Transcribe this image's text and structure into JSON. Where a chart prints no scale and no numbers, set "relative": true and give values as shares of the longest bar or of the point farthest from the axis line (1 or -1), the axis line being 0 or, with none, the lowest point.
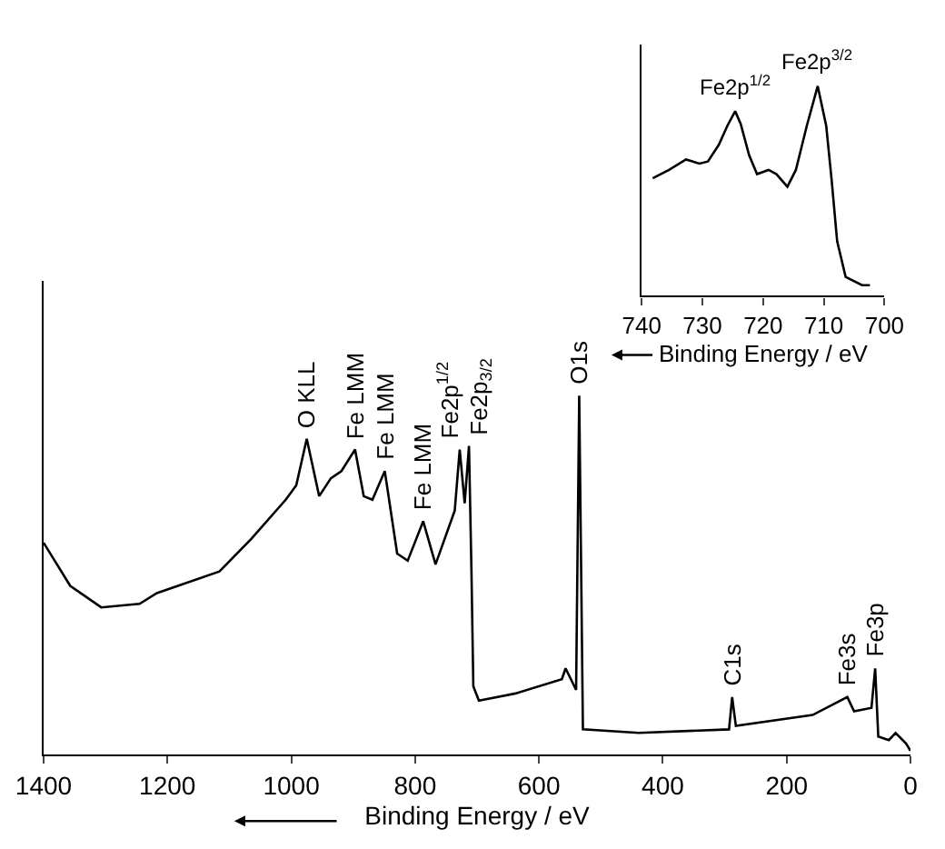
{
  "chart_data": [
    {
      "type": "line",
      "relative": true,
      "xlabel": "Binding Energy / eV",
      "xlim": [
        1400,
        0
      ],
      "xticks": [
        1400,
        1200,
        1000,
        800,
        600,
        400,
        200,
        0
      ],
      "x": [
        1400,
        1357,
        1307,
        1245,
        1217,
        1116,
        1065,
        1009,
        992,
        975,
        955,
        936,
        919,
        897,
        883,
        869,
        849,
        829,
        812,
        787,
        767,
        736,
        728,
        720,
        713,
        709,
        706,
        697,
        638,
        563,
        557,
        540,
        535,
        529,
        439,
        293,
        288,
        282,
        158,
        102,
        91,
        63,
        57,
        52,
        35,
        24,
        7,
        0
      ],
      "series": [
        {
          "color": "#000000",
          "values": [
            0.59,
            0.47,
            0.41,
            0.42,
            0.45,
            0.51,
            0.6,
            0.71,
            0.75,
            0.88,
            0.72,
            0.77,
            0.79,
            0.85,
            0.72,
            0.71,
            0.79,
            0.56,
            0.54,
            0.65,
            0.53,
            0.68,
            0.85,
            0.7,
            0.86,
            0.51,
            0.19,
            0.15,
            0.17,
            0.21,
            0.24,
            0.18,
            1.0,
            0.07,
            0.06,
            0.07,
            0.16,
            0.08,
            0.11,
            0.16,
            0.12,
            0.13,
            0.24,
            0.05,
            0.04,
            0.06,
            0.03,
            0.01
          ]
        }
      ],
      "annotations": [
        {
          "text": "O KLL",
          "x": 975,
          "y": 0.88
        },
        {
          "text": "Fe LMM",
          "x": 897,
          "y": 0.85
        },
        {
          "text": "Fe LMM",
          "x": 849,
          "y": 0.79
        },
        {
          "text": "Fe LMM",
          "x": 787,
          "y": 0.65
        },
        {
          "text": "Fe2p$^{1/2}$",
          "x": 728,
          "y": 0.85
        },
        {
          "text": "Fe2p$_{3/2}$",
          "x": 713,
          "y": 0.86
        },
        {
          "text": "O1s",
          "x": 535,
          "y": 1.0
        },
        {
          "text": "C1s",
          "x": 288,
          "y": 0.16
        },
        {
          "text": "Fe3s",
          "x": 102,
          "y": 0.16
        },
        {
          "text": "Fe3p",
          "x": 57,
          "y": 0.24
        }
      ]
    },
    {
      "type": "line",
      "relative": true,
      "xlabel": "Binding Energy / eV",
      "xlim": [
        740,
        700
      ],
      "xticks": [
        740,
        730,
        720,
        710,
        700
      ],
      "x": [
        738.2,
        735.5,
        732.7,
        730.5,
        729.1,
        727.3,
        725.9,
        724.6,
        723.7,
        722.3,
        721.0,
        719.1,
        717.8,
        716.0,
        714.6,
        712.8,
        711.0,
        709.6,
        708.7,
        707.8,
        706.4,
        703.7,
        702.4
      ],
      "series": [
        {
          "color": "#000000",
          "values": [
            0.56,
            0.6,
            0.65,
            0.63,
            0.64,
            0.72,
            0.81,
            0.88,
            0.82,
            0.67,
            0.58,
            0.6,
            0.58,
            0.52,
            0.6,
            0.81,
            1.0,
            0.81,
            0.55,
            0.26,
            0.09,
            0.05,
            0.05
          ]
        }
      ],
      "annotations": [
        {
          "text": "Fe2p$^{1/2}$",
          "x": 724.6,
          "y": 0.88
        },
        {
          "text": "Fe2p$^{3/2}$",
          "x": 711.0,
          "y": 1.0
        }
      ]
    }
  ]
}
